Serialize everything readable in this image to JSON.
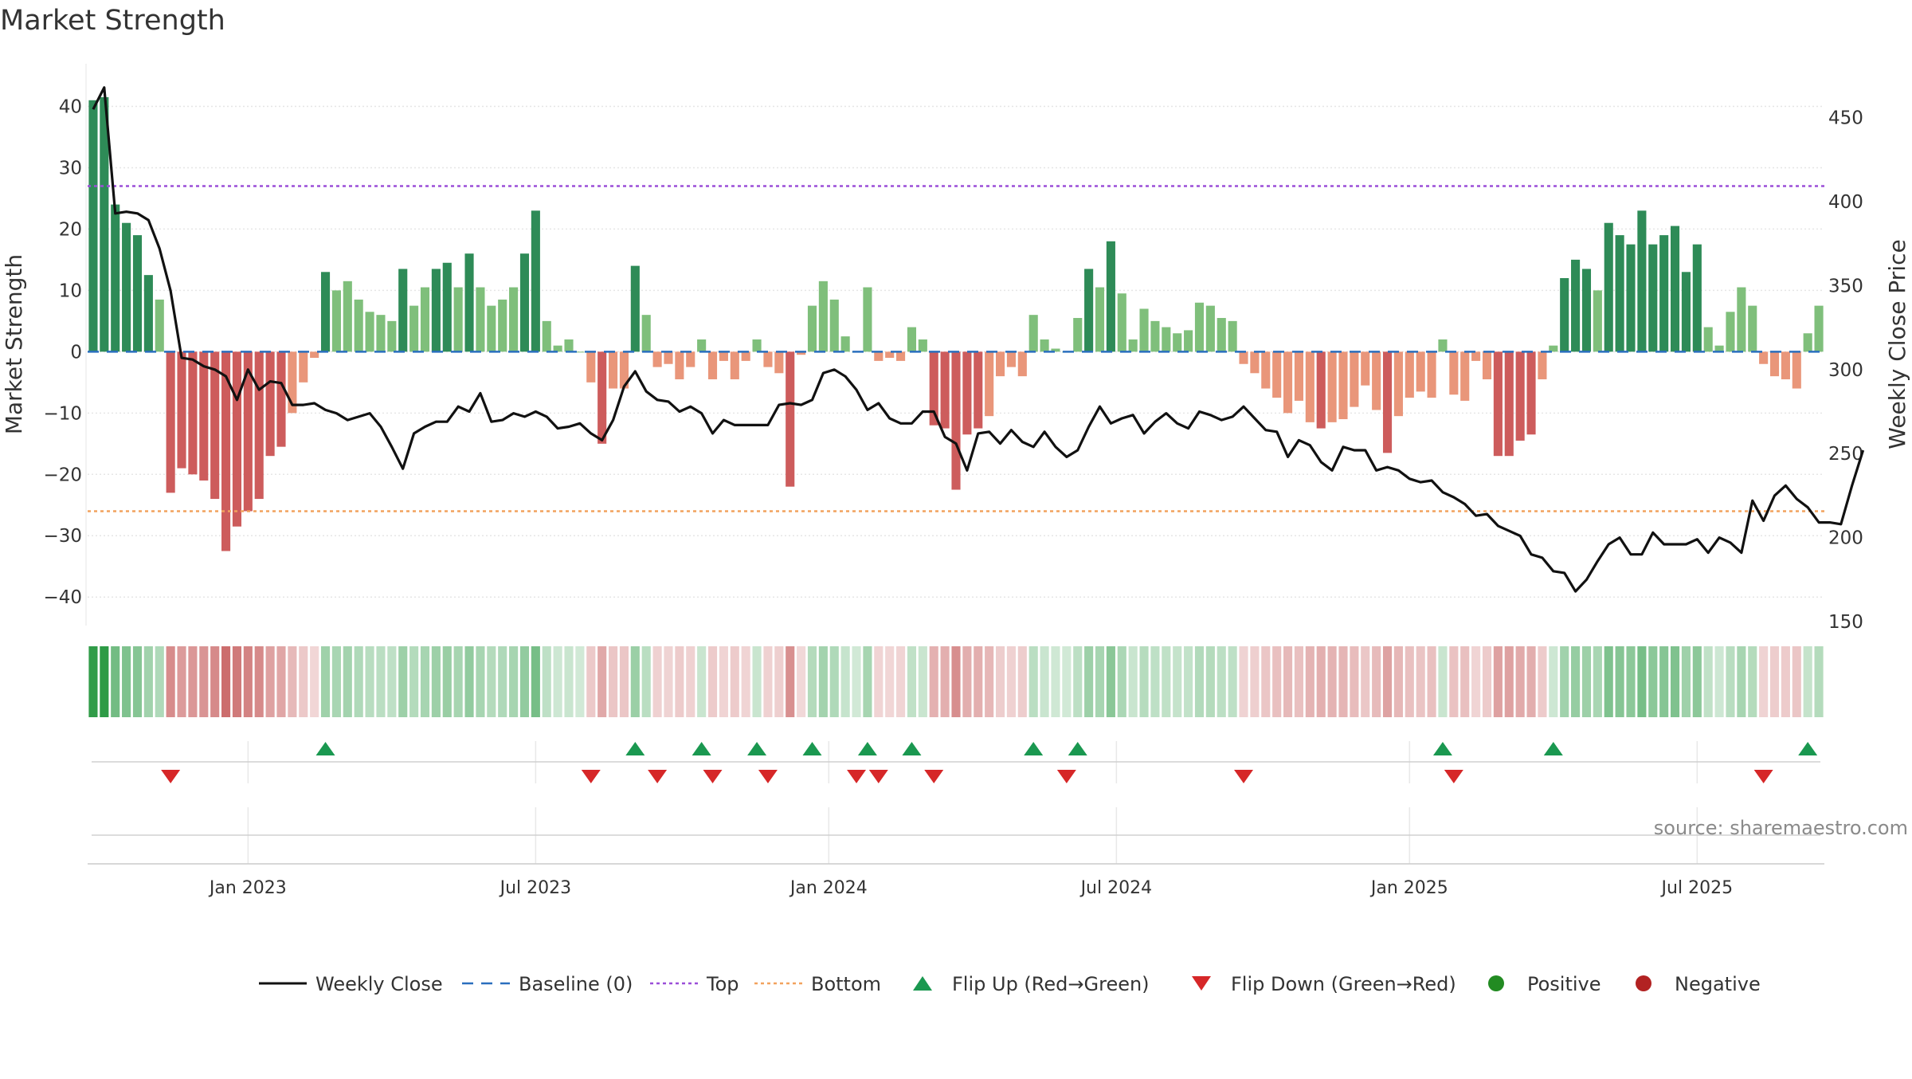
{
  "chart_data": {
    "type": "bar",
    "title": "Market Strength",
    "ylabel": "Market Strength",
    "y2label": "Weekly Close Price",
    "ylim": [
      -44,
      45
    ],
    "y2lim": [
      150,
      475
    ],
    "yticks": [
      40,
      30,
      20,
      10,
      0,
      -10,
      -20,
      -30,
      -40
    ],
    "ytick_labels": [
      "40",
      "30",
      "20",
      "10",
      "0",
      "−10",
      "−20",
      "−30",
      "−40"
    ],
    "y2ticks": [
      450,
      400,
      350,
      300,
      250,
      200,
      150
    ],
    "y2tick_labels": [
      "450",
      "400",
      "350",
      "300",
      "250",
      "200",
      "150"
    ],
    "xticks": [
      {
        "label": "Jan 2023",
        "week": 14
      },
      {
        "label": "Jul 2023",
        "week": 40
      },
      {
        "label": "Jan 2024",
        "week": 66.5
      },
      {
        "label": "Jul 2024",
        "week": 92.5
      },
      {
        "label": "Jan 2025",
        "week": 119
      },
      {
        "label": "Jul 2025",
        "week": 145
      }
    ],
    "top_line": 27,
    "bottom_line": -26,
    "series": [
      {
        "name": "Market Strength",
        "values": [
          41,
          41.5,
          24,
          21,
          19,
          12.5,
          8.5,
          -23,
          -19,
          -20,
          -21,
          -24,
          -32.5,
          -28.5,
          -26,
          -24,
          -17,
          -15.5,
          -10,
          -5,
          -1,
          13,
          10,
          11.5,
          8.5,
          6.5,
          6,
          5,
          13.5,
          7.5,
          10.5,
          13.5,
          14.5,
          10.5,
          16,
          10.5,
          7.5,
          8.5,
          10.5,
          16,
          23,
          5,
          1,
          2,
          0,
          -5,
          -15,
          -6,
          -6,
          14,
          6,
          -2.5,
          -2,
          -4.5,
          -2.5,
          2,
          -4.5,
          -1.5,
          -4.5,
          -1.5,
          2,
          -2.5,
          -3.5,
          -22,
          -0.5,
          7.5,
          11.5,
          8.5,
          2.5,
          0,
          10.5,
          -1.5,
          -1,
          -1.5,
          4,
          2,
          -12,
          -12.5,
          -22.5,
          -13.5,
          -12.5,
          -10.5,
          -4,
          -2.5,
          -4,
          6,
          2,
          0.5,
          0,
          5.5,
          13.5,
          10.5,
          18,
          9.5,
          2,
          7,
          5,
          4,
          3,
          3.5,
          8,
          7.5,
          5.5,
          5,
          -2,
          -3.5,
          -6,
          -7.5,
          -10,
          -8,
          -11.5,
          -12.5,
          -11.5,
          -11,
          -9,
          -5.5,
          -9.5,
          -16.5,
          -10.5,
          -7.5,
          -6.5,
          -7.5,
          2,
          -7,
          -8,
          -1.5,
          -4.5,
          -17,
          -17,
          -14.5,
          -13.5,
          -4.5,
          1,
          12,
          15,
          13.5,
          10,
          21,
          19,
          17.5,
          23,
          17.5,
          19,
          20.5,
          13,
          17.5,
          4,
          1,
          6.5,
          10.5,
          7.5,
          -2,
          -4,
          -4.5,
          -6,
          3,
          7.5
        ]
      },
      {
        "name": "Weekly Close",
        "values": [
          455,
          468,
          393,
          394,
          393,
          389,
          372,
          347,
          307,
          306,
          302,
          300,
          296,
          282,
          300,
          288,
          293,
          292,
          279,
          279,
          280,
          276,
          274,
          270,
          272,
          274,
          266,
          254,
          241,
          262,
          266,
          269,
          269,
          278,
          275,
          286,
          269,
          270,
          274,
          272,
          275,
          272,
          265,
          266,
          268,
          262,
          258,
          270,
          290,
          299,
          287,
          282,
          281,
          275,
          278,
          274,
          262,
          270,
          267,
          267,
          267,
          267,
          279,
          280,
          279,
          282,
          298,
          300,
          296,
          288,
          276,
          280,
          271,
          268,
          268,
          275,
          275,
          260,
          256,
          240,
          262,
          263,
          256,
          264,
          257,
          254,
          263,
          254,
          248,
          252,
          266,
          278,
          268,
          271,
          273,
          262,
          269,
          274,
          268,
          265,
          275,
          273,
          270,
          272,
          278,
          271,
          264,
          263,
          248,
          258,
          255,
          245,
          240,
          254,
          252,
          252,
          240,
          242,
          240,
          235,
          233,
          234,
          227,
          224,
          220,
          213,
          214,
          207,
          204,
          201,
          190,
          188,
          180,
          179,
          168,
          175,
          186,
          196,
          200,
          190,
          190,
          203,
          196,
          196,
          196,
          199,
          191,
          200,
          197,
          191,
          222,
          210,
          225,
          231,
          223,
          218,
          209,
          209,
          208,
          231,
          252
        ]
      }
    ],
    "flip_up_weeks": [
      21,
      49,
      55,
      60,
      65,
      70,
      74,
      85,
      89,
      122,
      132,
      155
    ],
    "flip_down_weeks": [
      7,
      45,
      51,
      56,
      61,
      69,
      71,
      76,
      88,
      104,
      123,
      151
    ],
    "legend": {
      "items": [
        {
          "label": "Weekly Close",
          "kind": "line",
          "color": "#111111"
        },
        {
          "label": "Baseline (0)",
          "kind": "dash",
          "color": "#2a6fbe"
        },
        {
          "label": "Top",
          "kind": "dot",
          "color": "#9b4fd8"
        },
        {
          "label": "Bottom",
          "kind": "dot",
          "color": "#f2a25e"
        },
        {
          "label": "Flip Up (Red→Green)",
          "kind": "tri-up",
          "color": "#1a9850"
        },
        {
          "label": "Flip Down (Green→Red)",
          "kind": "tri-down",
          "color": "#d62728"
        },
        {
          "label": "Positive",
          "kind": "circle",
          "color": "#228b22"
        },
        {
          "label": "Negative",
          "kind": "circle",
          "color": "#b22222"
        }
      ]
    },
    "legend_placement": "bottom-center",
    "grid": true,
    "source": "source: sharemaestro.com",
    "colors": {
      "pos_strong": "#2e8b57",
      "pos_light": "#7fbf7b",
      "neg_strong": "#cd5c5c",
      "neg_light": "#e9967a",
      "baseline": "#2a6fbe",
      "top": "#9b4fd8",
      "bottom": "#f2a25e",
      "price": "#111111"
    }
  }
}
